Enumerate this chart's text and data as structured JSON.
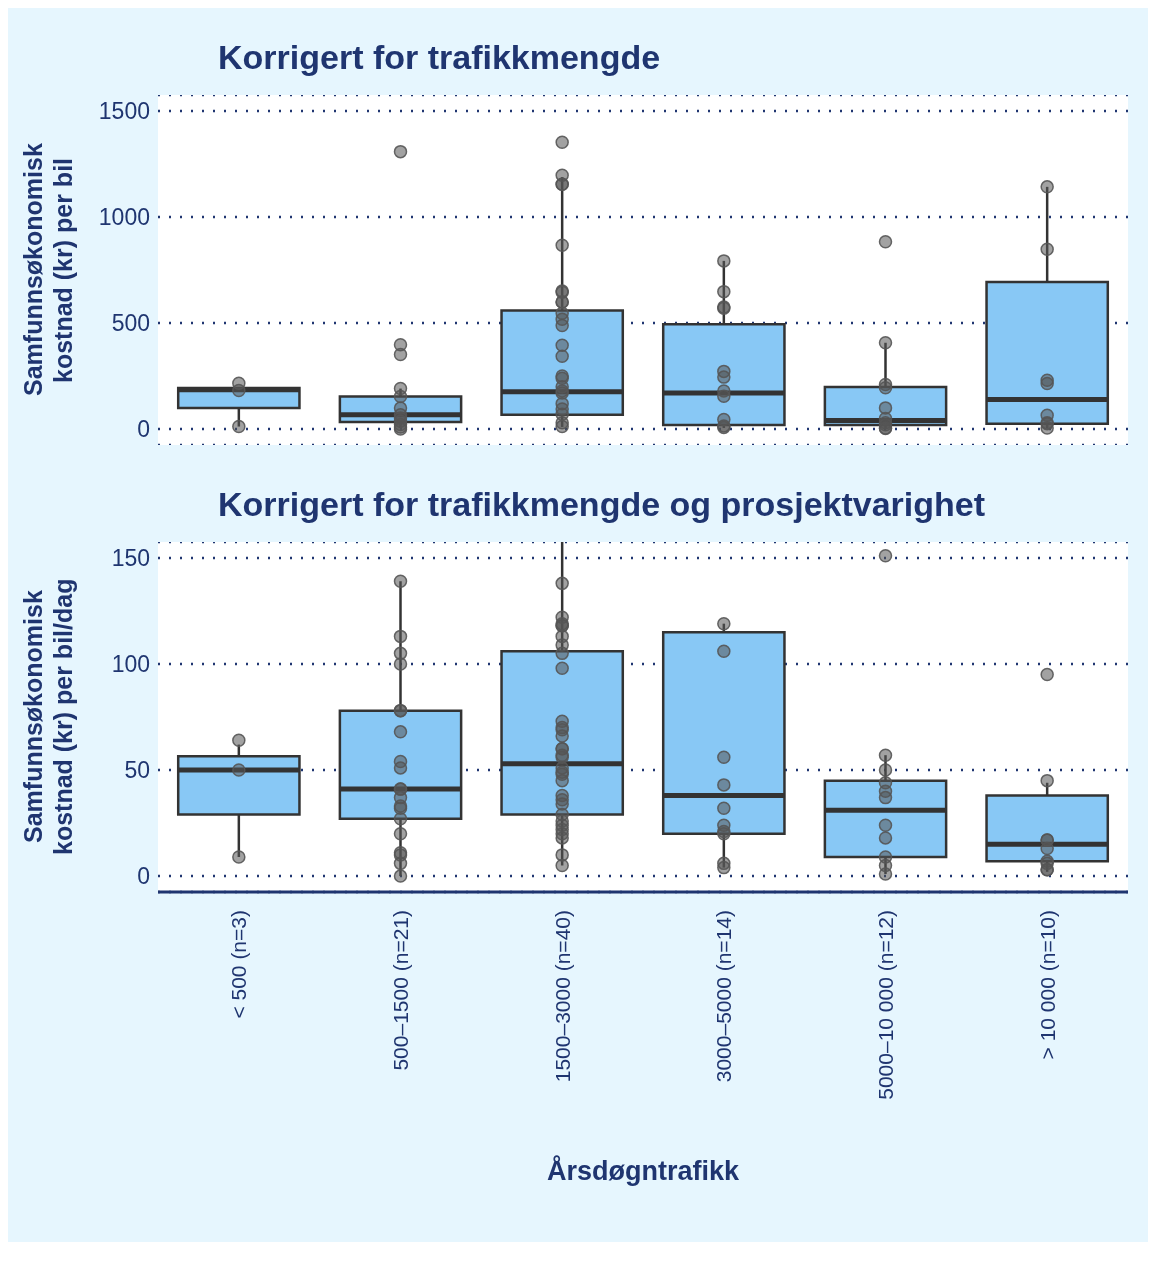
{
  "chart_data": [
    {
      "type": "box",
      "title": "Korrigert for trafikkmengde",
      "ylabel": "Samfunnsøkonomisk kostnad (kr) per bil",
      "categories": [
        "< 500 (n=3)",
        "500–1500 (n=21)",
        "1500–3000 (n=40)",
        "3000–5000 (n=14)",
        "5000–10 000 (n=12)",
        "> 10 000 (n=10)"
      ],
      "ylim": [
        -75,
        1575
      ],
      "yticks": [
        0,
        500,
        1000,
        1500
      ],
      "grid": "y",
      "tick_labels": "y",
      "series": [
        {
          "color": "#88c8f5",
          "boxes": [
            {
              "low": 12,
              "q1": 99,
              "median": 185,
              "q3": 194,
              "high": 194
            },
            {
              "low": 5,
              "q1": 34,
              "median": 68,
              "q3": 154,
              "high": 191
            },
            {
              "low": 10,
              "q1": 68,
              "median": 176,
              "q3": 559,
              "high": 1188
            },
            {
              "low": 5,
              "q1": 19,
              "median": 170,
              "q3": 494,
              "high": 793
            },
            {
              "low": 3,
              "q1": 19,
              "median": 40,
              "q3": 198,
              "high": 407
            },
            {
              "low": 5,
              "q1": 25,
              "median": 139,
              "q3": 694,
              "high": 1142
            }
          ]
        },
        {
          "type": "scatter",
          "color": "#555555",
          "x": [
            "< 500 (n=3)",
            "< 500 (n=3)",
            "< 500 (n=3)",
            "500–1500 (n=21)",
            "500–1500 (n=21)",
            "500–1500 (n=21)",
            "500–1500 (n=21)",
            "500–1500 (n=21)",
            "500–1500 (n=21)",
            "500–1500 (n=21)",
            "500–1500 (n=21)",
            "500–1500 (n=21)",
            "500–1500 (n=21)",
            "500–1500 (n=21)",
            "500–1500 (n=21)",
            "1500–3000 (n=40)",
            "1500–3000 (n=40)",
            "1500–3000 (n=40)",
            "1500–3000 (n=40)",
            "1500–3000 (n=40)",
            "1500–3000 (n=40)",
            "1500–3000 (n=40)",
            "1500–3000 (n=40)",
            "1500–3000 (n=40)",
            "1500–3000 (n=40)",
            "1500–3000 (n=40)",
            "1500–3000 (n=40)",
            "1500–3000 (n=40)",
            "1500–3000 (n=40)",
            "1500–3000 (n=40)",
            "1500–3000 (n=40)",
            "1500–3000 (n=40)",
            "1500–3000 (n=40)",
            "1500–3000 (n=40)",
            "1500–3000 (n=40)",
            "1500–3000 (n=40)",
            "1500–3000 (n=40)",
            "1500–3000 (n=40)",
            "1500–3000 (n=40)",
            "3000–5000 (n=14)",
            "3000–5000 (n=14)",
            "3000–5000 (n=14)",
            "3000–5000 (n=14)",
            "3000–5000 (n=14)",
            "3000–5000 (n=14)",
            "3000–5000 (n=14)",
            "3000–5000 (n=14)",
            "3000–5000 (n=14)",
            "3000–5000 (n=14)",
            "3000–5000 (n=14)",
            "5000–10 000 (n=12)",
            "5000–10 000 (n=12)",
            "5000–10 000 (n=12)",
            "5000–10 000 (n=12)",
            "5000–10 000 (n=12)",
            "5000–10 000 (n=12)",
            "5000–10 000 (n=12)",
            "5000–10 000 (n=12)",
            "5000–10 000 (n=12)",
            "5000–10 000 (n=12)",
            "> 10 000 (n=10)",
            "> 10 000 (n=10)",
            "> 10 000 (n=10)",
            "> 10 000 (n=10)",
            "> 10 000 (n=10)",
            "> 10 000 (n=10)",
            "> 10 000 (n=10)",
            "> 10 000 (n=10)"
          ],
          "values": [
            12,
            216,
            182,
            1308,
            398,
            352,
            191,
            154,
            99,
            68,
            52,
            37,
            22,
            10,
            0,
            1352,
            1197,
            1154,
            1154,
            867,
            651,
            645,
            599,
            599,
            546,
            518,
            488,
            395,
            343,
            250,
            240,
            200,
            180,
            170,
            120,
            95,
            70,
            30,
            12,
            793,
            648,
            575,
            570,
            272,
            245,
            180,
            155,
            45,
            15,
            8,
            883,
            407,
            210,
            195,
            100,
            50,
            30,
            20,
            5,
            3,
            1142,
            848,
            230,
            215,
            65,
            30,
            25,
            5
          ]
        }
      ]
    },
    {
      "type": "box",
      "title": "Korrigert for trafikkmengde og prosjektvarighet",
      "ylabel": "Samfunnsøkonomisk kostnad (kr) per bil/dag",
      "xlabel": "Årsdøgntrafikk",
      "categories": [
        "< 500 (n=3)",
        "500–1500 (n=21)",
        "1500–3000 (n=40)",
        "3000–5000 (n=14)",
        "5000–10 000 (n=12)",
        "> 10 000 (n=10)"
      ],
      "ylim": [
        -7.5,
        157.5
      ],
      "yticks": [
        0,
        50,
        100,
        150
      ],
      "grid": "y",
      "series": [
        {
          "color": "#88c8f5",
          "boxes": [
            {
              "low": 9,
              "q1": 29,
              "median": 50,
              "q3": 56.5,
              "high": 62
            },
            {
              "low": 0,
              "q1": 27,
              "median": 41,
              "q3": 78,
              "high": 139
            },
            {
              "low": 5,
              "q1": 29,
              "median": 53,
              "q3": 106,
              "high": 157.5
            },
            {
              "low": 4,
              "q1": 20,
              "median": 38,
              "q3": 115,
              "high": 119
            },
            {
              "low": 1,
              "q1": 9,
              "median": 31,
              "q3": 45,
              "high": 57
            },
            {
              "low": 2,
              "q1": 7,
              "median": 15,
              "q3": 38,
              "high": 44
            }
          ]
        },
        {
          "type": "scatter",
          "color": "#555555",
          "x": [
            "< 500 (n=3)",
            "< 500 (n=3)",
            "< 500 (n=3)",
            "500–1500 (n=21)",
            "500–1500 (n=21)",
            "500–1500 (n=21)",
            "500–1500 (n=21)",
            "500–1500 (n=21)",
            "500–1500 (n=21)",
            "500–1500 (n=21)",
            "500–1500 (n=21)",
            "500–1500 (n=21)",
            "500–1500 (n=21)",
            "500–1500 (n=21)",
            "500–1500 (n=21)",
            "500–1500 (n=21)",
            "500–1500 (n=21)",
            "500–1500 (n=21)",
            "500–1500 (n=21)",
            "500–1500 (n=21)",
            "500–1500 (n=21)",
            "500–1500 (n=21)",
            "500–1500 (n=21)",
            "1500–3000 (n=40)",
            "1500–3000 (n=40)",
            "1500–3000 (n=40)",
            "1500–3000 (n=40)",
            "1500–3000 (n=40)",
            "1500–3000 (n=40)",
            "1500–3000 (n=40)",
            "1500–3000 (n=40)",
            "1500–3000 (n=40)",
            "1500–3000 (n=40)",
            "1500–3000 (n=40)",
            "1500–3000 (n=40)",
            "1500–3000 (n=40)",
            "1500–3000 (n=40)",
            "1500–3000 (n=40)",
            "1500–3000 (n=40)",
            "1500–3000 (n=40)",
            "1500–3000 (n=40)",
            "1500–3000 (n=40)",
            "1500–3000 (n=40)",
            "1500–3000 (n=40)",
            "1500–3000 (n=40)",
            "1500–3000 (n=40)",
            "1500–3000 (n=40)",
            "1500–3000 (n=40)",
            "1500–3000 (n=40)",
            "1500–3000 (n=40)",
            "1500–3000 (n=40)",
            "1500–3000 (n=40)",
            "1500–3000 (n=40)",
            "1500–3000 (n=40)",
            "1500–3000 (n=40)",
            "3000–5000 (n=14)",
            "3000–5000 (n=14)",
            "3000–5000 (n=14)",
            "3000–5000 (n=14)",
            "3000–5000 (n=14)",
            "3000–5000 (n=14)",
            "3000–5000 (n=14)",
            "3000–5000 (n=14)",
            "3000–5000 (n=14)",
            "3000–5000 (n=14)",
            "5000–10 000 (n=12)",
            "5000–10 000 (n=12)",
            "5000–10 000 (n=12)",
            "5000–10 000 (n=12)",
            "5000–10 000 (n=12)",
            "5000–10 000 (n=12)",
            "5000–10 000 (n=12)",
            "5000–10 000 (n=12)",
            "5000–10 000 (n=12)",
            "5000–10 000 (n=12)",
            "5000–10 000 (n=12)",
            "> 10 000 (n=10)",
            "> 10 000 (n=10)",
            "> 10 000 (n=10)",
            "> 10 000 (n=10)",
            "> 10 000 (n=10)",
            "> 10 000 (n=10)",
            "> 10 000 (n=10)",
            "> 10 000 (n=10)",
            "> 10 000 (n=10)"
          ],
          "values": [
            64,
            50,
            9,
            139,
            113,
            105,
            100,
            78,
            78,
            68,
            54,
            51,
            41,
            41,
            37,
            33,
            32,
            27,
            20,
            10,
            11,
            6,
            0,
            138,
            122,
            119,
            118,
            118,
            113,
            109,
            105,
            98,
            73,
            70,
            69,
            66,
            60,
            60,
            57,
            56,
            51,
            49,
            48,
            45,
            38,
            36,
            34,
            29,
            26,
            24,
            22,
            20,
            18,
            10,
            5,
            119,
            106,
            56,
            43,
            32,
            24,
            21,
            20,
            6,
            4,
            151,
            57,
            50,
            44,
            40,
            37,
            24,
            18,
            9,
            5,
            1,
            95,
            45,
            17,
            17,
            13,
            7,
            6,
            3,
            3
          ]
        }
      ]
    }
  ]
}
